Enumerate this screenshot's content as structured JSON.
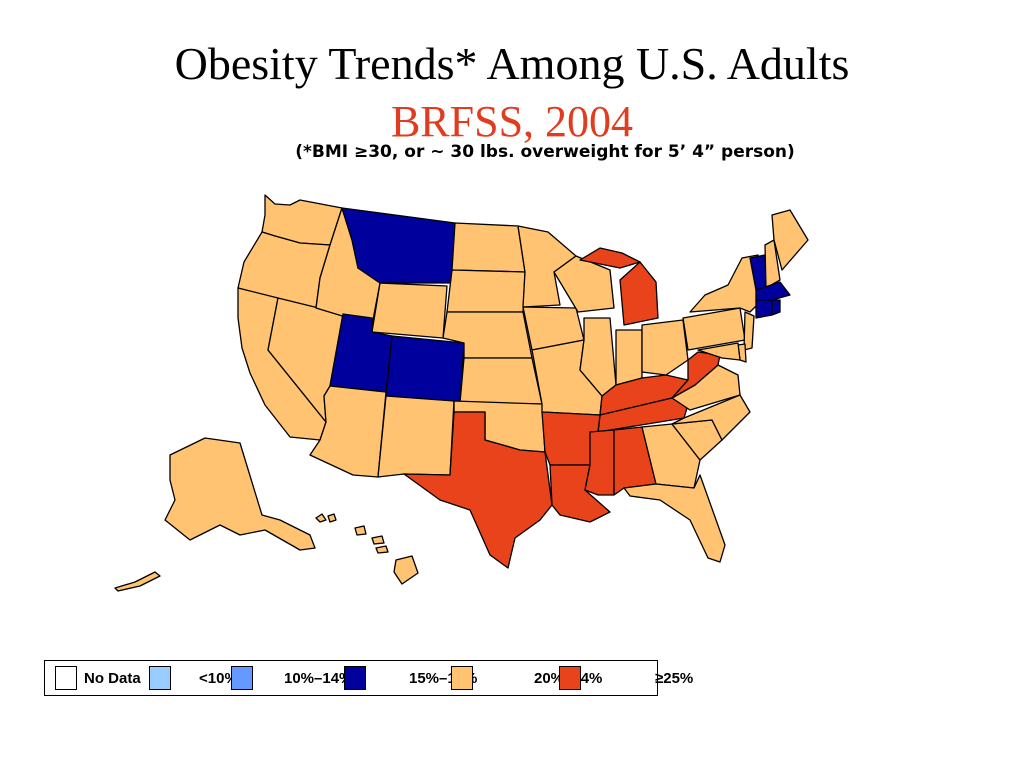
{
  "title": "Obesity Trends* Among U.S. Adults",
  "subtitle": "BRFSS, 2004",
  "footnote": "(*BMI ≥30, or ~ 30 lbs. overweight for 5’ 4” person)",
  "colors": {
    "subtitle": "#e03c1f",
    "no_data": "#ffffff",
    "lt10": "#99ccff",
    "p10_14": "#6699ff",
    "p15_19": "#00009c",
    "p20_24": "#ffc372",
    "ge25": "#e8431a"
  },
  "legend": [
    {
      "label": "No Data",
      "color_key": "no_data"
    },
    {
      "label": "<10%",
      "color_key": "lt10"
    },
    {
      "label": "10%–14%",
      "color_key": "p10_14"
    },
    {
      "label": "15%–19%",
      "color_key": "p15_19"
    },
    {
      "label": "20%–24%",
      "color_key": "p20_24"
    },
    {
      "label": "≥25%",
      "color_key": "ge25"
    }
  ],
  "states": {
    "WA": "p20_24",
    "OR": "p20_24",
    "CA": "p20_24",
    "NV": "p20_24",
    "ID": "p20_24",
    "MT": "p15_19",
    "WY": "p20_24",
    "UT": "p15_19",
    "CO": "p15_19",
    "AZ": "p20_24",
    "NM": "p20_24",
    "ND": "p20_24",
    "SD": "p20_24",
    "NE": "p20_24",
    "KS": "p20_24",
    "OK": "p20_24",
    "TX": "ge25",
    "MN": "p20_24",
    "IA": "p20_24",
    "MO": "p20_24",
    "AR": "ge25",
    "LA": "ge25",
    "WI": "p20_24",
    "IL": "p20_24",
    "MI": "ge25",
    "IN": "p20_24",
    "OH": "p20_24",
    "KY": "ge25",
    "TN": "ge25",
    "MS": "ge25",
    "AL": "ge25",
    "GA": "p20_24",
    "FL": "p20_24",
    "SC": "p20_24",
    "NC": "p20_24",
    "VA": "p20_24",
    "WV": "ge25",
    "PA": "p20_24",
    "NY": "p20_24",
    "ME": "p20_24",
    "NH": "p20_24",
    "VT": "p15_19",
    "MA": "p15_19",
    "RI": "p15_19",
    "CT": "p15_19",
    "NJ": "p20_24",
    "DE": "p20_24",
    "MD": "p20_24",
    "AK": "p20_24",
    "HI": "p20_24"
  }
}
